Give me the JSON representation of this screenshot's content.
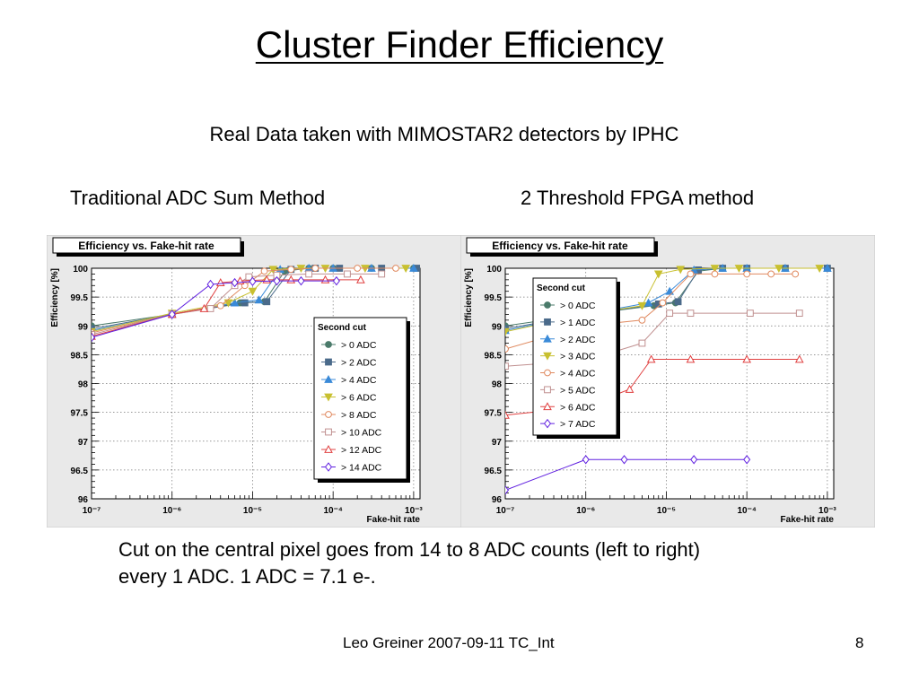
{
  "slide": {
    "title": "Cluster Finder Efficiency",
    "subtitle": "Real Data taken with MIMOSTAR2 detectors by IPHC",
    "left_label": "Traditional ADC Sum Method",
    "right_label": "2 Threshold FPGA method",
    "caption_line1": "Cut on the central pixel goes from 14 to 8 ADC counts (left to right)",
    "caption_line2": "every 1 ADC.   1 ADC = 7.1 e-.",
    "footer": "Leo Greiner 2007-09-11 TC_Int",
    "page_number": "8"
  },
  "chart_data": [
    {
      "type": "line",
      "title": "Efficiency vs. Fake-hit rate",
      "xlabel": "Fake-hit rate",
      "ylabel": "Efficiency [%]",
      "xscale": "log",
      "xlim": [
        1e-07,
        0.0012
      ],
      "ylim": [
        96,
        100
      ],
      "x_ticks": [
        "10^-7",
        "10^-6",
        "10^-5",
        "10^-4",
        "10^-3"
      ],
      "y_ticks": [
        "96",
        "96.5",
        "97",
        "97.5",
        "98",
        "98.5",
        "99",
        "99.5",
        "100"
      ],
      "grid": true,
      "legend_title": "Second cut",
      "legend_position": "center-right",
      "series": [
        {
          "name": "> 0 ADC",
          "color": "#4a7a6a",
          "marker": "circle",
          "x": [
            1e-07,
            1e-06,
            7e-06,
            1.4e-05,
            2.5e-05,
            5e-05,
            0.0001,
            0.0003,
            0.001
          ],
          "y": [
            99.0,
            99.2,
            99.4,
            99.42,
            99.95,
            100,
            100,
            100,
            100
          ]
        },
        {
          "name": "> 2 ADC",
          "color": "#4a6a8a",
          "marker": "square",
          "x": [
            1e-07,
            1e-06,
            8e-06,
            1.5e-05,
            3e-05,
            6e-05,
            0.00012,
            0.0004,
            0.0011
          ],
          "y": [
            98.95,
            99.2,
            99.4,
            99.42,
            99.98,
            100,
            100,
            100,
            100
          ]
        },
        {
          "name": "> 4 ADC",
          "color": "#3a8ad8",
          "marker": "triangle-up",
          "x": [
            1e-07,
            1e-06,
            6e-06,
            1.2e-05,
            2.2e-05,
            5e-05,
            0.0001,
            0.0003,
            0.001
          ],
          "y": [
            98.92,
            99.2,
            99.4,
            99.45,
            99.98,
            100,
            100,
            100,
            100
          ]
        },
        {
          "name": "> 6 ADC",
          "color": "#c8c030",
          "marker": "triangle-down",
          "x": [
            1e-07,
            1e-06,
            5e-06,
            1e-05,
            1.8e-05,
            4e-05,
            8e-05,
            0.00025,
            0.0008
          ],
          "y": [
            98.9,
            99.22,
            99.4,
            99.6,
            99.98,
            100,
            100,
            100,
            100
          ]
        },
        {
          "name": "> 8 ADC",
          "color": "#e08a60",
          "marker": "circle-open",
          "x": [
            1e-07,
            1e-06,
            4e-06,
            8e-06,
            1.4e-05,
            3e-05,
            6e-05,
            0.0002,
            0.0006
          ],
          "y": [
            98.88,
            99.2,
            99.35,
            99.7,
            99.95,
            99.98,
            100,
            100,
            100
          ]
        },
        {
          "name": "> 10 ADC",
          "color": "#c09090",
          "marker": "square-open",
          "x": [
            1e-07,
            1e-06,
            3e-06,
            6e-06,
            9e-06,
            2e-05,
            5e-05,
            0.00015,
            0.0004
          ],
          "y": [
            98.85,
            99.2,
            99.3,
            99.7,
            99.85,
            99.88,
            99.9,
            99.9,
            99.9
          ]
        },
        {
          "name": "> 12 ADC",
          "color": "#e04040",
          "marker": "triangle-up-open",
          "x": [
            1e-07,
            1e-06,
            2.5e-06,
            4e-06,
            7e-06,
            1.5e-05,
            3e-05,
            8e-05,
            0.00022
          ],
          "y": [
            98.82,
            99.2,
            99.3,
            99.75,
            99.78,
            99.8,
            99.8,
            99.8,
            99.8
          ]
        },
        {
          "name": "> 14 ADC",
          "color": "#6020e0",
          "marker": "diamond-open",
          "x": [
            1e-07,
            1e-06,
            3e-06,
            6e-06,
            1e-05,
            2e-05,
            4e-05,
            0.00011
          ],
          "y": [
            98.8,
            99.2,
            99.72,
            99.75,
            99.77,
            99.78,
            99.78,
            99.78
          ]
        }
      ]
    },
    {
      "type": "line",
      "title": "Efficiency vs. Fake-hit rate",
      "xlabel": "Fake-hit rate",
      "ylabel": "Efficiency [%]",
      "xscale": "log",
      "xlim": [
        1e-07,
        0.0012
      ],
      "ylim": [
        96,
        100
      ],
      "x_ticks": [
        "10^-7",
        "10^-6",
        "10^-5",
        "10^-4",
        "10^-3"
      ],
      "y_ticks": [
        "96",
        "96.5",
        "97",
        "97.5",
        "98",
        "98.5",
        "99",
        "99.5",
        "100"
      ],
      "grid": true,
      "legend_title": "Second cut",
      "legend_position": "center-left",
      "series": [
        {
          "name": "> 0 ADC",
          "color": "#4a7a6a",
          "marker": "circle",
          "x": [
            1e-07,
            1e-06,
            7e-06,
            1.3e-05,
            2.5e-05,
            5e-05,
            0.0001,
            0.0003,
            0.001
          ],
          "y": [
            99.0,
            99.2,
            99.35,
            99.4,
            99.95,
            100,
            100,
            100,
            100
          ]
        },
        {
          "name": "> 1 ADC",
          "color": "#4a6a8a",
          "marker": "square",
          "x": [
            1e-07,
            1e-06,
            8e-06,
            1.4e-05,
            2.5e-05,
            5e-05,
            0.0001,
            0.0003,
            0.001
          ],
          "y": [
            98.95,
            99.2,
            99.38,
            99.42,
            99.97,
            100,
            100,
            100,
            100
          ]
        },
        {
          "name": "> 2 ADC",
          "color": "#3a8ad8",
          "marker": "triangle-up",
          "x": [
            1e-07,
            1e-06,
            6e-06,
            1.1e-05,
            2.2e-05,
            5e-05,
            0.0001,
            0.0003,
            0.001
          ],
          "y": [
            98.92,
            99.2,
            99.4,
            99.6,
            99.97,
            100,
            100,
            100,
            100
          ]
        },
        {
          "name": "> 3 ADC",
          "color": "#c8c030",
          "marker": "triangle-down",
          "x": [
            1e-07,
            1e-06,
            5e-06,
            8e-06,
            1.5e-05,
            4e-05,
            8e-05,
            0.00025,
            0.0008
          ],
          "y": [
            98.9,
            99.2,
            99.35,
            99.9,
            99.98,
            100,
            100,
            100,
            100
          ]
        },
        {
          "name": "> 4 ADC",
          "color": "#e08a60",
          "marker": "circle-open",
          "x": [
            1e-07,
            1e-06,
            5e-06,
            9e-06,
            2e-05,
            4e-05,
            0.0001,
            0.0002,
            0.0004
          ],
          "y": [
            98.6,
            99.0,
            99.1,
            99.4,
            99.9,
            99.9,
            99.9,
            99.9,
            99.9
          ]
        },
        {
          "name": "> 5 ADC",
          "color": "#c09090",
          "marker": "square-open",
          "x": [
            1e-07,
            1e-06,
            5e-06,
            1.1e-05,
            2e-05,
            0.00011,
            0.00045
          ],
          "y": [
            98.3,
            98.4,
            98.7,
            99.22,
            99.22,
            99.22,
            99.22
          ]
        },
        {
          "name": "> 6 ADC",
          "color": "#e04040",
          "marker": "triangle-up-open",
          "x": [
            1e-07,
            1e-06,
            3.5e-06,
            6.5e-06,
            2e-05,
            0.0001,
            0.00045
          ],
          "y": [
            97.45,
            97.6,
            97.9,
            98.42,
            98.42,
            98.42,
            98.42
          ]
        },
        {
          "name": "> 7 ADC",
          "color": "#6020e0",
          "marker": "diamond-open",
          "x": [
            1e-07,
            1e-06,
            3e-06,
            2.2e-05,
            0.0001
          ],
          "y": [
            96.15,
            96.68,
            96.68,
            96.68,
            96.68
          ]
        }
      ]
    }
  ]
}
